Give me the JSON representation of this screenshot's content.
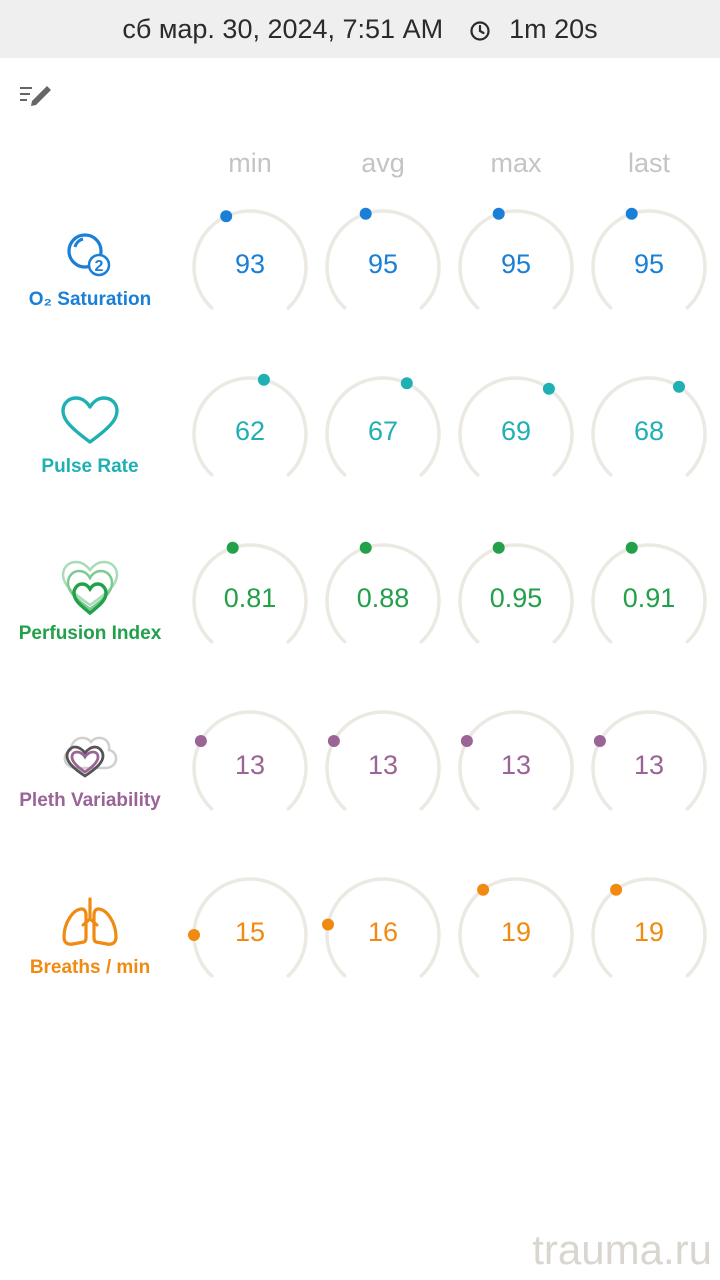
{
  "header": {
    "datetime": "сб мар. 30, 2024, 7:51 AM",
    "duration": "1m 20s",
    "clock_icon": "clock-icon"
  },
  "toolbar": {
    "edit_icon": "edit-list-icon"
  },
  "columns": [
    "min",
    "avg",
    "max",
    "last"
  ],
  "metrics": [
    {
      "label": "O₂ Saturation",
      "icon": "o2-saturation-icon",
      "color": "#1a7fd6",
      "values": [
        "93",
        "95",
        "95",
        "95"
      ],
      "levels": [
        0.93,
        0.95,
        0.95,
        0.95
      ]
    },
    {
      "label": "Pulse Rate",
      "icon": "heart-icon",
      "color": "#1fb0b4",
      "values": [
        "62",
        "67",
        "69",
        "68"
      ],
      "levels": [
        0.04,
        0.07,
        0.1,
        0.09
      ]
    },
    {
      "label": "Perfusion Index",
      "icon": "perfusion-heart-icon",
      "color": "#22a04a",
      "values": [
        "0.81",
        "0.88",
        "0.95",
        "0.91"
      ],
      "levels": [
        -0.05,
        -0.05,
        -0.05,
        -0.05
      ]
    },
    {
      "label": "Pleth Variability",
      "icon": "pleth-variability-icon",
      "color": "#9a6496",
      "values": [
        "13",
        "13",
        "13",
        "13"
      ],
      "levels": [
        -0.17,
        -0.17,
        -0.17,
        -0.17
      ]
    },
    {
      "label": "Breaths / min",
      "icon": "lungs-icon",
      "color": "#f08a10",
      "values": [
        "15",
        "16",
        "19",
        "19"
      ],
      "levels": [
        -0.25,
        -0.22,
        -0.1,
        -0.1
      ]
    }
  ],
  "watermark": "trauma.ru"
}
